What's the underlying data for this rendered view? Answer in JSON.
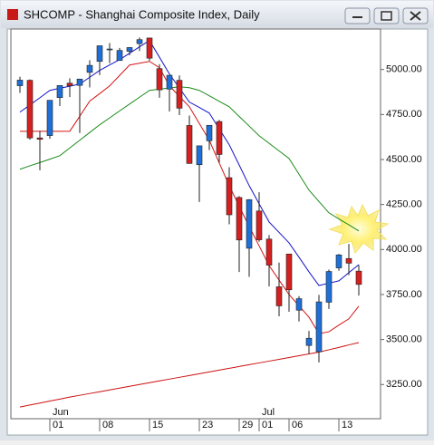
{
  "chart_data": {
    "type": "candlestick",
    "title": "SHCOMP - Shanghai Composite Index, Daily",
    "categories": [
      null,
      null,
      null,
      "01",
      null,
      null,
      null,
      null,
      "08",
      null,
      null,
      null,
      null,
      "15",
      null,
      null,
      null,
      null,
      "23",
      null,
      null,
      null,
      "29",
      null,
      "01",
      null,
      null,
      "06",
      null,
      null,
      null,
      null,
      "13",
      null,
      null
    ],
    "months": [
      null,
      null,
      null,
      "Jun",
      null,
      null,
      null,
      null,
      null,
      null,
      null,
      null,
      null,
      null,
      null,
      null,
      null,
      null,
      null,
      null,
      null,
      null,
      null,
      null,
      "Jul",
      null,
      null,
      null,
      null,
      null,
      null,
      null,
      null,
      null,
      null
    ],
    "open": [
      4910,
      4940,
      4620,
      4633,
      4844,
      4924,
      4912,
      4984,
      5045,
      5113,
      5050,
      5101,
      5144,
      5175,
      5005,
      4891,
      4940,
      4689,
      4471,
      4604,
      4711,
      4399,
      4289,
      4007,
      4214,
      4058,
      3793,
      3975,
      3663,
      3467,
      3432,
      3707,
      3898,
      3950,
      3880
    ],
    "high": [
      4960,
      4945,
      4660,
      4829,
      4911,
      4951,
      4947,
      5052,
      5132,
      5147,
      5120,
      5125,
      5178,
      5176,
      5030,
      4968,
      4967,
      4744,
      4577,
      4691,
      4720,
      4457,
      4297,
      4280,
      4318,
      4080,
      3927,
      3975,
      3741,
      3548,
      3748,
      3889,
      3976,
      4031,
      3913
    ],
    "low": [
      4870,
      4610,
      4440,
      4615,
      4797,
      4847,
      4647,
      4900,
      4969,
      5035,
      5050,
      5079,
      5103,
      5048,
      4843,
      4767,
      4747,
      4476,
      4264,
      4552,
      4483,
      4140,
      3875,
      3848,
      4043,
      3795,
      3629,
      3654,
      3600,
      3421,
      3373,
      3670,
      3882,
      3858,
      3744
    ],
    "close": [
      4941,
      4620,
      4612,
      4829,
      4911,
      4910,
      4947,
      5023,
      5132,
      5114,
      5106,
      5122,
      5166,
      5063,
      4887,
      4968,
      4785,
      4478,
      4576,
      4690,
      4528,
      4193,
      4053,
      4277,
      4054,
      3913,
      3687,
      3776,
      3727,
      3507,
      3709,
      3878,
      3970,
      3924,
      3806
    ],
    "up_color": "#1f6fd6",
    "down_color": "#d42020",
    "lines": [
      {
        "color": "#1414c8",
        "values": [
          4763,
          4803,
          4843,
          4884,
          4896,
          4907,
          4919,
          4957,
          4995,
          5025,
          5055,
          5090,
          5126,
          5161,
          5068,
          4975,
          4897,
          4819,
          4789,
          4758,
          4670,
          4582,
          4469,
          4355,
          4254,
          4153,
          4095,
          4037,
          3957,
          3876,
          3800,
          3813,
          3826,
          3871,
          3916
        ]
      },
      {
        "color": "#d41414",
        "values": [
          4657,
          4657,
          4657,
          4657,
          4657,
          4657,
          4740,
          4824,
          4866,
          4909,
          4967,
          5025,
          5035,
          5045,
          5010,
          4910,
          4850,
          4793,
          4700,
          4607,
          4481,
          4355,
          4240,
          4128,
          4020,
          3911,
          3830,
          3750,
          3687,
          3624,
          3533,
          3543,
          3580,
          3615,
          3685
        ]
      },
      {
        "color": "#1a8a1a",
        "values": [
          4446,
          4465,
          4483,
          4502,
          4521,
          4564,
          4607,
          4650,
          4693,
          4731,
          4770,
          4808,
          4846,
          4884,
          4891,
          4897,
          4904,
          4899,
          4884,
          4854,
          4823,
          4793,
          4739,
          4686,
          4632,
          4590,
          4548,
          4506,
          4418,
          4330,
          4267,
          4204,
          4170,
          4137,
          4103
        ]
      },
      {
        "color": "#cc1010",
        "values": [
          3125,
          3136,
          3147,
          3158,
          3169,
          3180,
          3190,
          3200,
          3210,
          3220,
          3230,
          3240,
          3250,
          3260,
          3270,
          3280,
          3290,
          3300,
          3310,
          3320,
          3330,
          3340,
          3350,
          3360,
          3370,
          3380,
          3390,
          3400,
          3410,
          3420,
          3430,
          3443,
          3456,
          3470,
          3483
        ]
      }
    ],
    "ylim": [
      3060,
      5225
    ],
    "yticks": [
      {
        "value": 3250,
        "label": "3250.00"
      },
      {
        "value": 3500,
        "label": "3500.00"
      },
      {
        "value": 3750,
        "label": "3750.00"
      },
      {
        "value": 4000,
        "label": "4000.00"
      },
      {
        "value": 4250,
        "label": "4250.00"
      },
      {
        "value": 4500,
        "label": "4500.00"
      },
      {
        "value": 4750,
        "label": "4750.00"
      },
      {
        "value": 5000,
        "label": "5000.00"
      }
    ]
  }
}
